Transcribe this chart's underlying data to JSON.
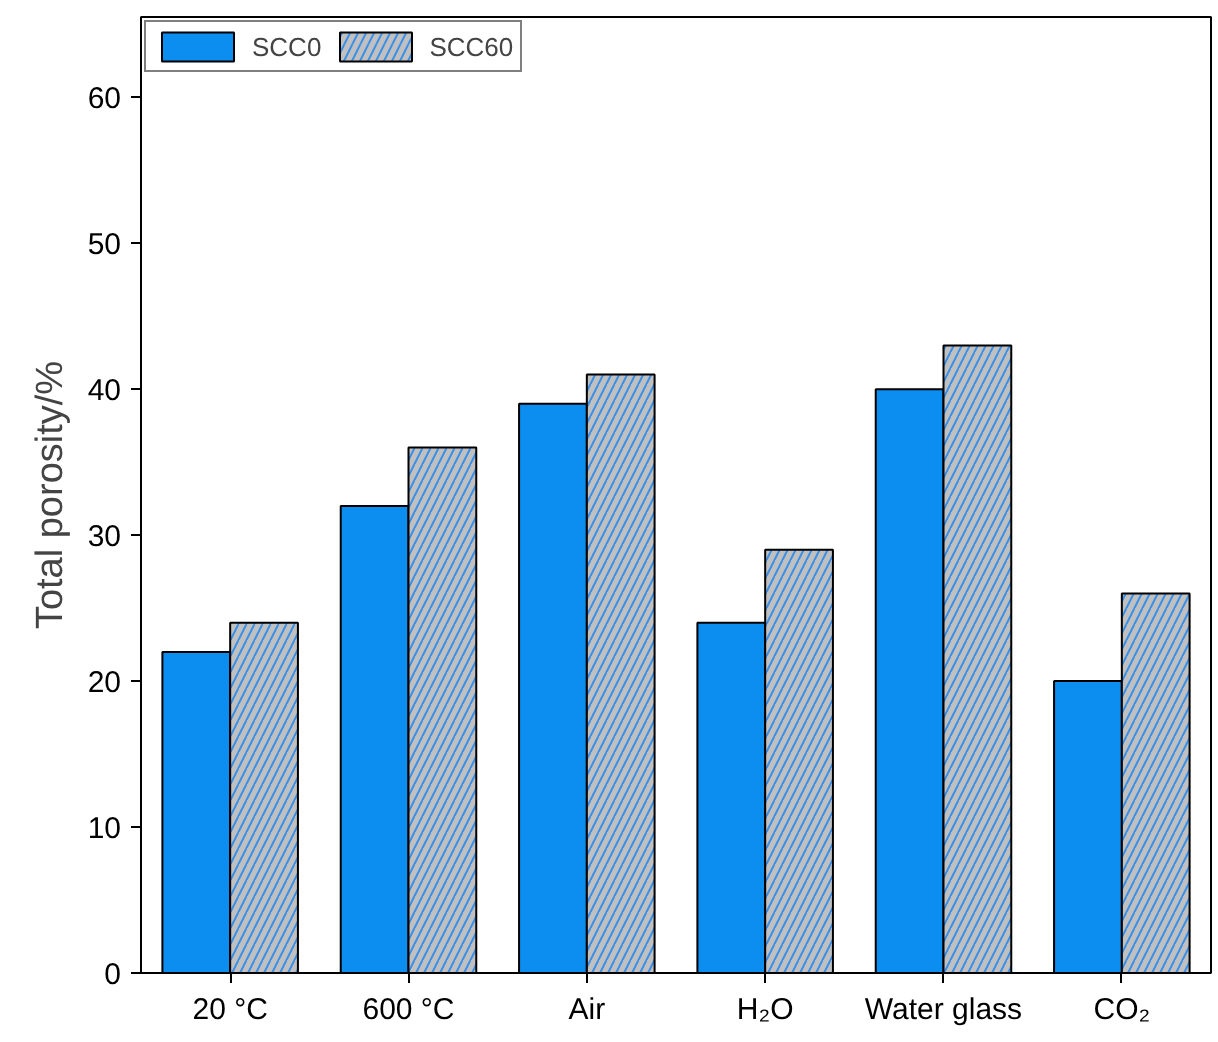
{
  "chart_data": {
    "type": "bar",
    "ylabel": "Total porosity/%",
    "categories": [
      "20 °C",
      "600 °C",
      "Air",
      "H₂O",
      "Water glass",
      "CO₂"
    ],
    "series": [
      {
        "name": "SCC0",
        "color": "#0c8ef0",
        "values": [
          22,
          32,
          39,
          24,
          40,
          20
        ]
      },
      {
        "name": "SCC60",
        "color": "#c0c0c0",
        "values": [
          24,
          36,
          41,
          29,
          43,
          26
        ]
      }
    ],
    "ylim": [
      0,
      65.5
    ],
    "yticks": [
      0,
      10,
      20,
      30,
      40,
      50,
      60
    ],
    "grid": false,
    "legend": "top left"
  }
}
